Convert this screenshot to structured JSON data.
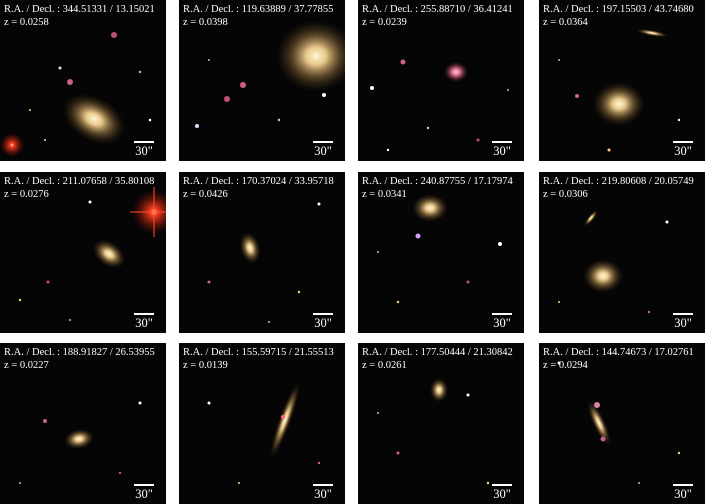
{
  "panels": [
    {
      "coords": "R.A. / Decl. : 344.51331 /  13.15021",
      "z": "z = 0.0258",
      "scale": "30\"",
      "galaxy_type": "elliptical",
      "star": "red-star-bottom-left"
    },
    {
      "coords": "R.A. / Decl. : 119.63889 /  37.77855",
      "z": "z = 0.0398",
      "scale": "30\"",
      "galaxy_type": "elliptical"
    },
    {
      "coords": "R.A. / Decl. : 255.88710 /  36.41241",
      "z": "z = 0.0239",
      "scale": "30\"",
      "galaxy_type": "compact-pink"
    },
    {
      "coords": "R.A. / Decl. : 197.15503 /  43.74680",
      "z": "z = 0.0364",
      "scale": "30\"",
      "galaxy_type": "elliptical"
    },
    {
      "coords": "R.A. / Decl. : 211.07658 /  35.80108",
      "z": "z = 0.0276",
      "scale": "30\"",
      "galaxy_type": "elliptical",
      "star": "red-star-top-right"
    },
    {
      "coords": "R.A. / Decl. : 170.37024 /  33.95718",
      "z": "z = 0.0426",
      "scale": "30\"",
      "galaxy_type": "lenticular"
    },
    {
      "coords": "R.A. / Decl. : 240.87755 /  17.17974",
      "z": "z = 0.0341",
      "scale": "30\"",
      "galaxy_type": "elliptical"
    },
    {
      "coords": "R.A. / Decl. : 219.80608 /  20.05749",
      "z": "z = 0.0306",
      "scale": "30\"",
      "galaxy_type": "elliptical"
    },
    {
      "coords": "R.A. / Decl. : 188.91827 /  26.53955",
      "z": "z = 0.0227",
      "scale": "30\"",
      "galaxy_type": "elliptical"
    },
    {
      "coords": "R.A. / Decl. : 155.59715 /  21.55513",
      "z": "z = 0.0139",
      "scale": "30\"",
      "galaxy_type": "edge-on-spiral"
    },
    {
      "coords": "R.A. / Decl. : 177.50444 /  21.30842",
      "z": "z = 0.0261",
      "scale": "30\"",
      "galaxy_type": "elliptical"
    },
    {
      "coords": "R.A. / Decl. : 144.74673 /  17.02761",
      "z": "z = 0.0294",
      "scale": "30\"",
      "galaxy_type": "spiral"
    }
  ],
  "colors": {
    "background": "#050505",
    "text": "#ffffff",
    "galaxy_core": "#fff2c8",
    "galaxy_halo": "#c8a060",
    "star_red": "#ff3010"
  }
}
